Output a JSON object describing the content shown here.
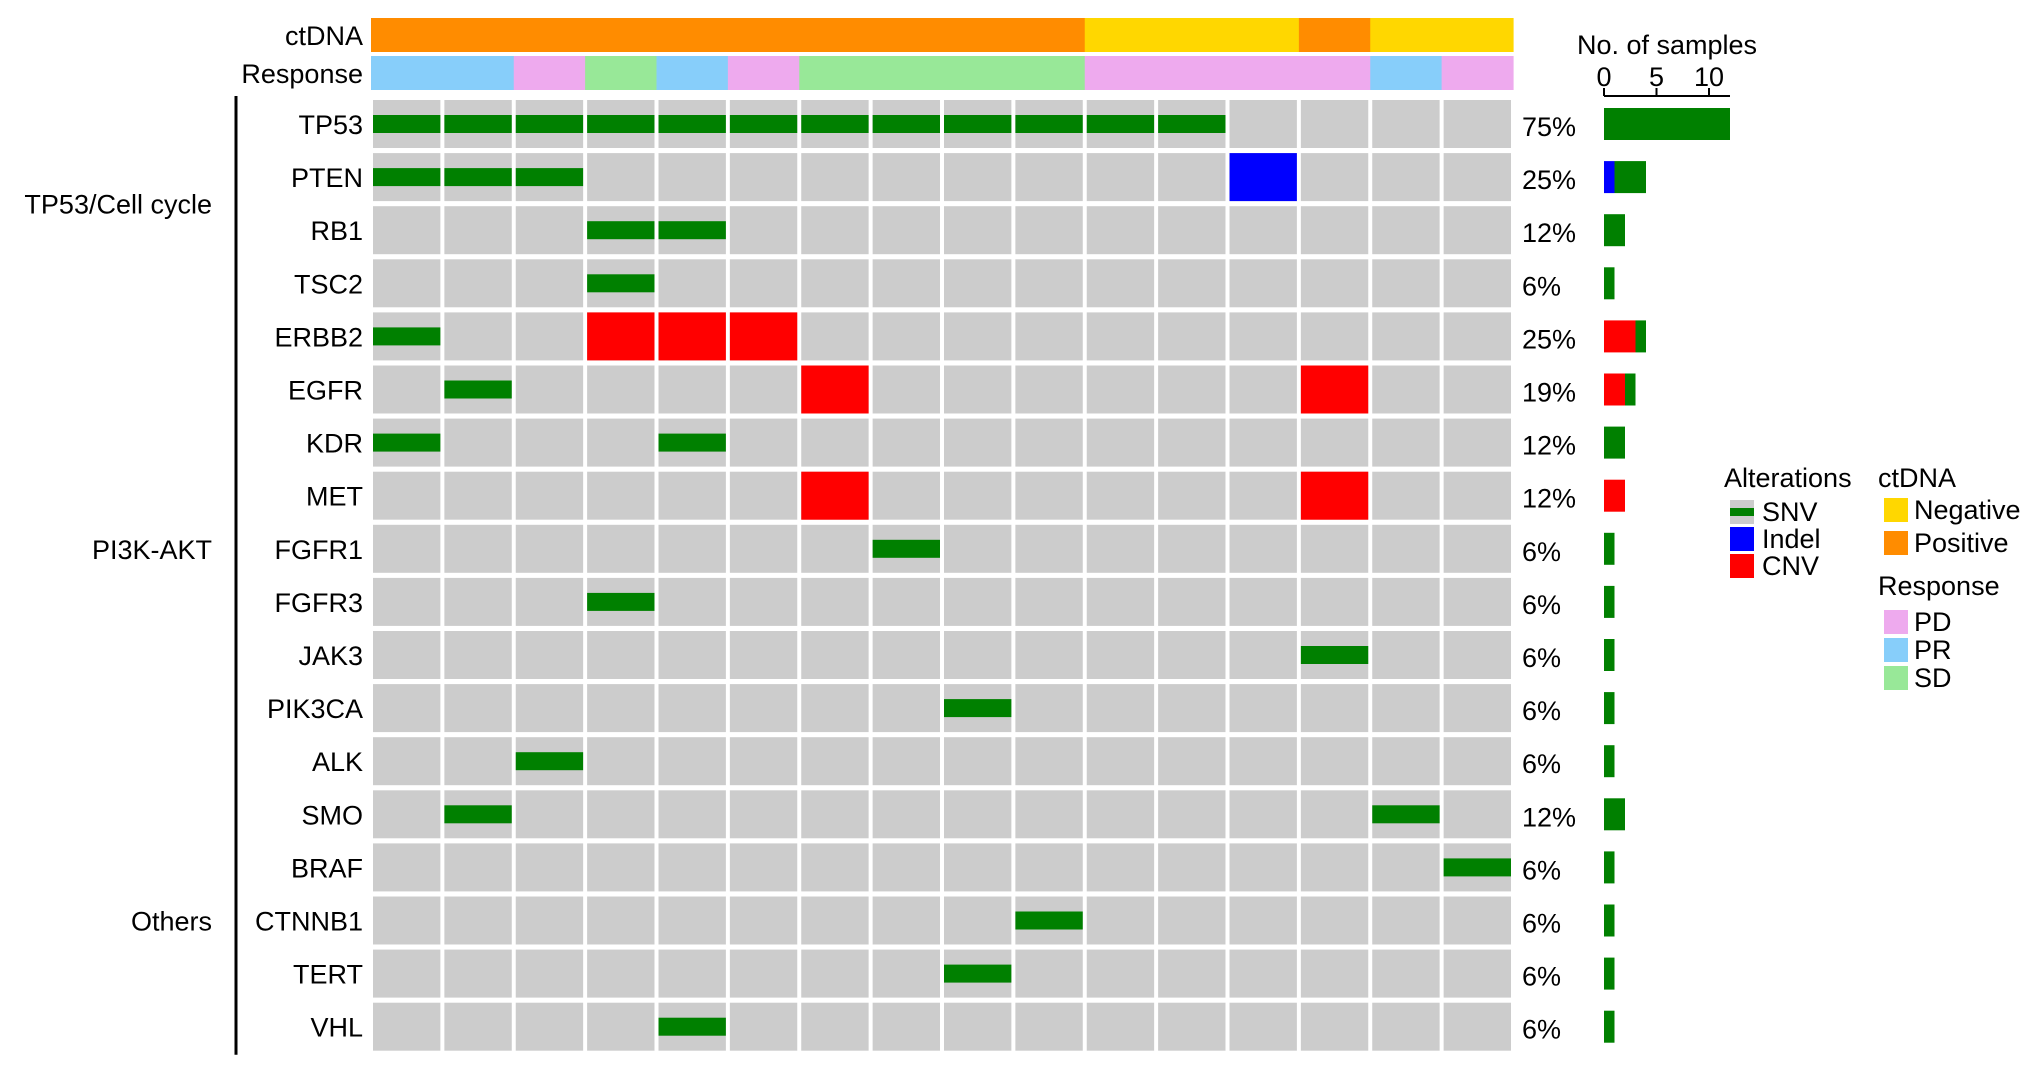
{
  "chart_data": {
    "type": "heatmap",
    "title": "",
    "annotation_tracks": [
      {
        "name": "ctDNA",
        "values": [
          "Positive",
          "Positive",
          "Positive",
          "Positive",
          "Positive",
          "Positive",
          "Positive",
          "Positive",
          "Positive",
          "Positive",
          "Negative",
          "Negative",
          "Negative",
          "Positive",
          "Negative",
          "Negative"
        ]
      },
      {
        "name": "Response",
        "values": [
          "PR",
          "PR",
          "PD",
          "SD",
          "PR",
          "PD",
          "SD",
          "SD",
          "SD",
          "SD",
          "PD",
          "PD",
          "PD",
          "PD",
          "PR",
          "PD"
        ]
      }
    ],
    "groups": [
      {
        "name": "TP53/Cell cycle",
        "genes": [
          "TP53",
          "PTEN",
          "RB1",
          "TSC2"
        ]
      },
      {
        "name": "PI3K-AKT",
        "genes": [
          "ERBB2",
          "EGFR",
          "KDR",
          "MET",
          "FGFR1",
          "FGFR3",
          "JAK3",
          "PIK3CA",
          "ALK"
        ]
      },
      {
        "name": "Others",
        "genes": [
          "SMO",
          "BRAF",
          "CTNNB1",
          "TERT",
          "VHL"
        ]
      }
    ],
    "genes": [
      {
        "name": "TP53",
        "percent": "75%",
        "alterations": [
          [
            "SNV",
            1
          ],
          [
            "SNV",
            2
          ],
          [
            "SNV",
            3
          ],
          [
            "SNV",
            4
          ],
          [
            "SNV",
            5
          ],
          [
            "SNV",
            6
          ],
          [
            "SNV",
            7
          ],
          [
            "SNV",
            8
          ],
          [
            "SNV",
            9
          ],
          [
            "SNV",
            10
          ],
          [
            "SNV",
            11
          ],
          [
            "SNV",
            12
          ]
        ]
      },
      {
        "name": "PTEN",
        "percent": "25%",
        "alterations": [
          [
            "SNV",
            1
          ],
          [
            "SNV",
            2
          ],
          [
            "SNV",
            3
          ],
          [
            "Indel",
            13
          ]
        ]
      },
      {
        "name": "RB1",
        "percent": "12%",
        "alterations": [
          [
            "SNV",
            4
          ],
          [
            "SNV",
            5
          ]
        ]
      },
      {
        "name": "TSC2",
        "percent": "6%",
        "alterations": [
          [
            "SNV",
            4
          ]
        ]
      },
      {
        "name": "ERBB2",
        "percent": "25%",
        "alterations": [
          [
            "SNV",
            1
          ],
          [
            "CNV",
            4
          ],
          [
            "CNV",
            5
          ],
          [
            "CNV",
            6
          ]
        ]
      },
      {
        "name": "EGFR",
        "percent": "19%",
        "alterations": [
          [
            "SNV",
            2
          ],
          [
            "CNV",
            7
          ],
          [
            "CNV",
            14
          ]
        ]
      },
      {
        "name": "KDR",
        "percent": "12%",
        "alterations": [
          [
            "SNV",
            1
          ],
          [
            "SNV",
            5
          ]
        ]
      },
      {
        "name": "MET",
        "percent": "12%",
        "alterations": [
          [
            "CNV",
            7
          ],
          [
            "CNV",
            14
          ]
        ]
      },
      {
        "name": "FGFR1",
        "percent": "6%",
        "alterations": [
          [
            "SNV",
            8
          ]
        ]
      },
      {
        "name": "FGFR3",
        "percent": "6%",
        "alterations": [
          [
            "SNV",
            4
          ]
        ]
      },
      {
        "name": "JAK3",
        "percent": "6%",
        "alterations": [
          [
            "SNV",
            14
          ]
        ]
      },
      {
        "name": "PIK3CA",
        "percent": "6%",
        "alterations": [
          [
            "SNV",
            9
          ]
        ]
      },
      {
        "name": "ALK",
        "percent": "6%",
        "alterations": [
          [
            "SNV",
            3
          ]
        ]
      },
      {
        "name": "SMO",
        "percent": "12%",
        "alterations": [
          [
            "SNV",
            2
          ],
          [
            "SNV",
            15
          ]
        ]
      },
      {
        "name": "BRAF",
        "percent": "6%",
        "alterations": [
          [
            "SNV",
            16
          ]
        ]
      },
      {
        "name": "CTNNB1",
        "percent": "6%",
        "alterations": [
          [
            "SNV",
            10
          ]
        ]
      },
      {
        "name": "TERT",
        "percent": "6%",
        "alterations": [
          [
            "SNV",
            9
          ]
        ]
      },
      {
        "name": "VHL",
        "percent": "6%",
        "alterations": [
          [
            "SNV",
            5
          ]
        ]
      }
    ],
    "bar_axis": {
      "label": "No. of samples",
      "ticks": [
        0,
        5,
        10
      ],
      "xlim": [
        0,
        12
      ]
    },
    "legend": {
      "alterations": {
        "title": "Alterations",
        "items": [
          "SNV",
          "Indel",
          "CNV"
        ]
      },
      "ctdna": {
        "title": "ctDNA",
        "items": [
          "Negative",
          "Positive"
        ]
      },
      "response": {
        "title": "Response",
        "items": [
          "PD",
          "PR",
          "SD"
        ]
      },
      "placement": "right"
    },
    "colors": {
      "SNV": "#008000",
      "Indel": "#0000ff",
      "CNV": "#ff0000",
      "Positive": "#ff8c00",
      "Negative": "#ffd700",
      "PD": "#eeaaee",
      "PR": "#87cefa",
      "SD": "#98e898",
      "background": "#cccccc"
    }
  }
}
